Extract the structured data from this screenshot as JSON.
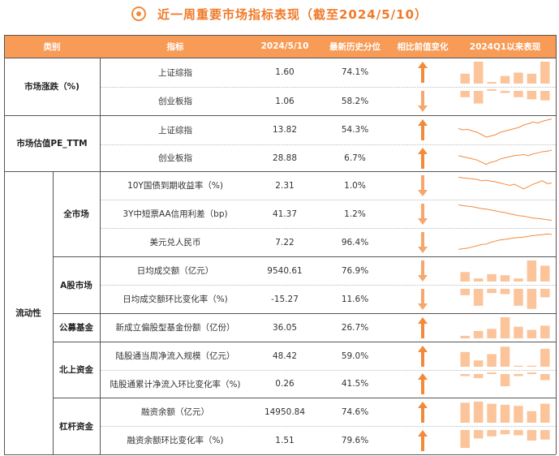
{
  "title": "近一周重要市场指标表现（截至2024/5/10）",
  "colors": {
    "accent": "#f28a3c",
    "header_bg": "#f79b56",
    "bar": "#fbc49a",
    "line": "#f28a3c"
  },
  "headers": [
    "类别",
    "指标",
    "2024/5/10",
    "最新历史分位",
    "相比前值变化",
    "2024Q1以来表现"
  ],
  "groups": [
    {
      "label": "市场涨跌（%)"
    },
    {
      "label": "市场估值PE_TTM"
    },
    {
      "label": "流动性"
    }
  ],
  "subgroups": [
    {
      "label": "全市场"
    },
    {
      "label": "A股市场"
    },
    {
      "label": "公募基金"
    },
    {
      "label": "北上资金"
    },
    {
      "label": "杠杆资金"
    }
  ],
  "rows": [
    {
      "indicator": "上证综指",
      "value": "1.60",
      "pct": "74.1%",
      "change": "up",
      "viz": "bar",
      "bars": [
        0.45,
        1.0,
        0.0,
        0.35,
        0.5,
        0.45,
        1.0
      ]
    },
    {
      "indicator": "创业板指",
      "value": "1.06",
      "pct": "58.2%",
      "change": "down",
      "viz": "bar",
      "bars": [
        -0.3,
        -0.6,
        0.0,
        -0.1,
        -0.3,
        -0.4,
        -0.45
      ]
    },
    {
      "indicator": "上证综指",
      "value": "13.82",
      "pct": "54.3%",
      "change": "up",
      "viz": "line",
      "line": [
        0.55,
        0.5,
        0.52,
        0.45,
        0.4,
        0.3,
        0.2,
        0.25,
        0.3,
        0.4,
        0.45,
        0.5,
        0.55,
        0.6,
        0.7,
        0.75,
        0.82,
        0.78,
        0.85,
        0.9,
        0.95
      ]
    },
    {
      "indicator": "创业板指",
      "value": "28.88",
      "pct": "6.7%",
      "change": "up",
      "viz": "line",
      "line": [
        0.6,
        0.55,
        0.5,
        0.45,
        0.4,
        0.3,
        0.2,
        0.3,
        0.35,
        0.45,
        0.5,
        0.55,
        0.6,
        0.62,
        0.65,
        0.6,
        0.68,
        0.72,
        0.78,
        0.8,
        0.85
      ]
    },
    {
      "indicator": "10Y国债到期收益率（%)",
      "value": "2.31",
      "pct": "1.0%",
      "change": "down",
      "viz": "line",
      "line": [
        0.85,
        0.82,
        0.8,
        0.78,
        0.75,
        0.7,
        0.72,
        0.68,
        0.65,
        0.6,
        0.55,
        0.5,
        0.55,
        0.45,
        0.35,
        0.45,
        0.55,
        0.62,
        0.7,
        0.58,
        0.6
      ]
    },
    {
      "indicator": "3Y中短票AA信用利差（bp)",
      "value": "41.37",
      "pct": "1.2%",
      "change": "down",
      "viz": "line",
      "line": [
        0.88,
        0.85,
        0.82,
        0.8,
        0.76,
        0.72,
        0.7,
        0.66,
        0.62,
        0.58,
        0.55,
        0.5,
        0.46,
        0.42,
        0.4,
        0.36,
        0.32,
        0.3,
        0.28,
        0.25,
        0.22
      ]
    },
    {
      "indicator": "美元兑人民币",
      "value": "7.22",
      "pct": "96.4%",
      "change": "down",
      "viz": "line",
      "line": [
        0.2,
        0.22,
        0.25,
        0.3,
        0.35,
        0.4,
        0.42,
        0.5,
        0.55,
        0.6,
        0.62,
        0.65,
        0.68,
        0.7,
        0.72,
        0.75,
        0.78,
        0.8,
        0.82,
        0.85,
        0.83
      ]
    },
    {
      "indicator": "日均成交额（亿元）",
      "value": "9540.61",
      "pct": "76.9%",
      "change": "down",
      "viz": "bar",
      "bars": [
        0.45,
        0.15,
        0.35,
        0.3,
        0.15,
        1.0,
        0.75
      ]
    },
    {
      "indicator": "日均成交额环比变化率（%)",
      "value": "-15.27",
      "pct": "11.6%",
      "change": "down",
      "viz": "bar",
      "bars": [
        -0.3,
        -0.8,
        -0.2,
        -0.25,
        -0.8,
        -0.95,
        -0.4
      ]
    },
    {
      "indicator": "新成立偏股型基金份额（亿份）",
      "value": "36.05",
      "pct": "26.7%",
      "change": "up",
      "viz": "bar",
      "bars": [
        0.12,
        0.35,
        0.45,
        1.0,
        0.55,
        0.4,
        0.6
      ]
    },
    {
      "indicator": "陆股通当周净流入规模（亿元）",
      "value": "48.42",
      "pct": "59.0%",
      "change": "up",
      "viz": "bar",
      "bars": [
        0.7,
        0.3,
        0.6,
        0.95,
        0.05,
        0.05,
        0.85
      ]
    },
    {
      "indicator": "陆股通累计净流入环比变化率（%)",
      "value": "0.26",
      "pct": "41.5%",
      "change": "up",
      "viz": "bar",
      "bars": [
        -0.1,
        -0.2,
        0.0,
        -0.6,
        -0.1,
        0.0,
        -0.3
      ]
    },
    {
      "indicator": "融资余额（亿元）",
      "value": "14950.84",
      "pct": "74.6%",
      "change": "up",
      "viz": "bar",
      "bars": [
        0.95,
        1.0,
        0.9,
        0.85,
        0.8,
        0.55,
        0.9
      ]
    },
    {
      "indicator": "融资余额环比变化率（%)",
      "value": "1.51",
      "pct": "79.6%",
      "change": "up",
      "viz": "bar",
      "bars": [
        -0.85,
        -0.4,
        -0.3,
        -0.2,
        -0.25,
        -0.5,
        -0.45
      ]
    }
  ]
}
